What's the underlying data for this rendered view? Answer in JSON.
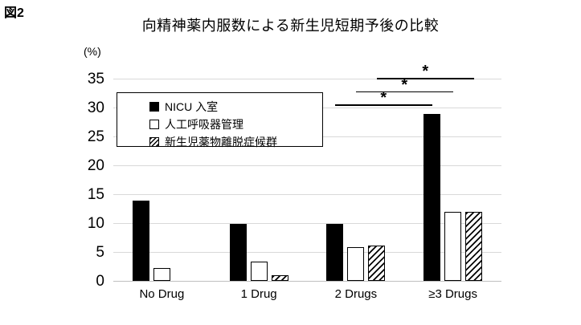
{
  "figure_label": "図2",
  "chart_data": {
    "type": "bar",
    "title": "向精神薬内服数による新生児短期予後の比較",
    "y_unit": "(%)",
    "xlabel": "",
    "ylabel": "%",
    "ylim": [
      0,
      35
    ],
    "yticks": [
      0,
      5,
      10,
      15,
      20,
      25,
      30,
      35
    ],
    "grid": true,
    "legend_position": "upper-left-inside",
    "categories": [
      "No Drug",
      "1 Drug",
      "2 Drugs",
      "≥3 Drugs"
    ],
    "series": [
      {
        "name": "NICU 入室",
        "style": "solid-black",
        "values": [
          13.9,
          9.8,
          9.8,
          28.9
        ]
      },
      {
        "name": "人工呼吸器管理",
        "style": "white",
        "values": [
          2.2,
          3.3,
          5.9,
          11.9
        ]
      },
      {
        "name": "新生児薬物離脱症候群",
        "style": "hatched",
        "values": [
          0,
          1.0,
          6.1,
          11.9
        ]
      }
    ],
    "significance": [
      {
        "label": "*",
        "series_index": 0,
        "between_category_indexes": [
          2,
          3
        ]
      },
      {
        "label": "*",
        "series_index": 1,
        "between_category_indexes": [
          2,
          3
        ]
      },
      {
        "label": "*",
        "series_index": 2,
        "between_category_indexes": [
          2,
          3
        ]
      }
    ],
    "colors": {
      "bar_fill": "#000000",
      "bar_outline": "#000000",
      "gridline": "#d9d9d9",
      "text": "#000000",
      "background": "#ffffff"
    }
  }
}
